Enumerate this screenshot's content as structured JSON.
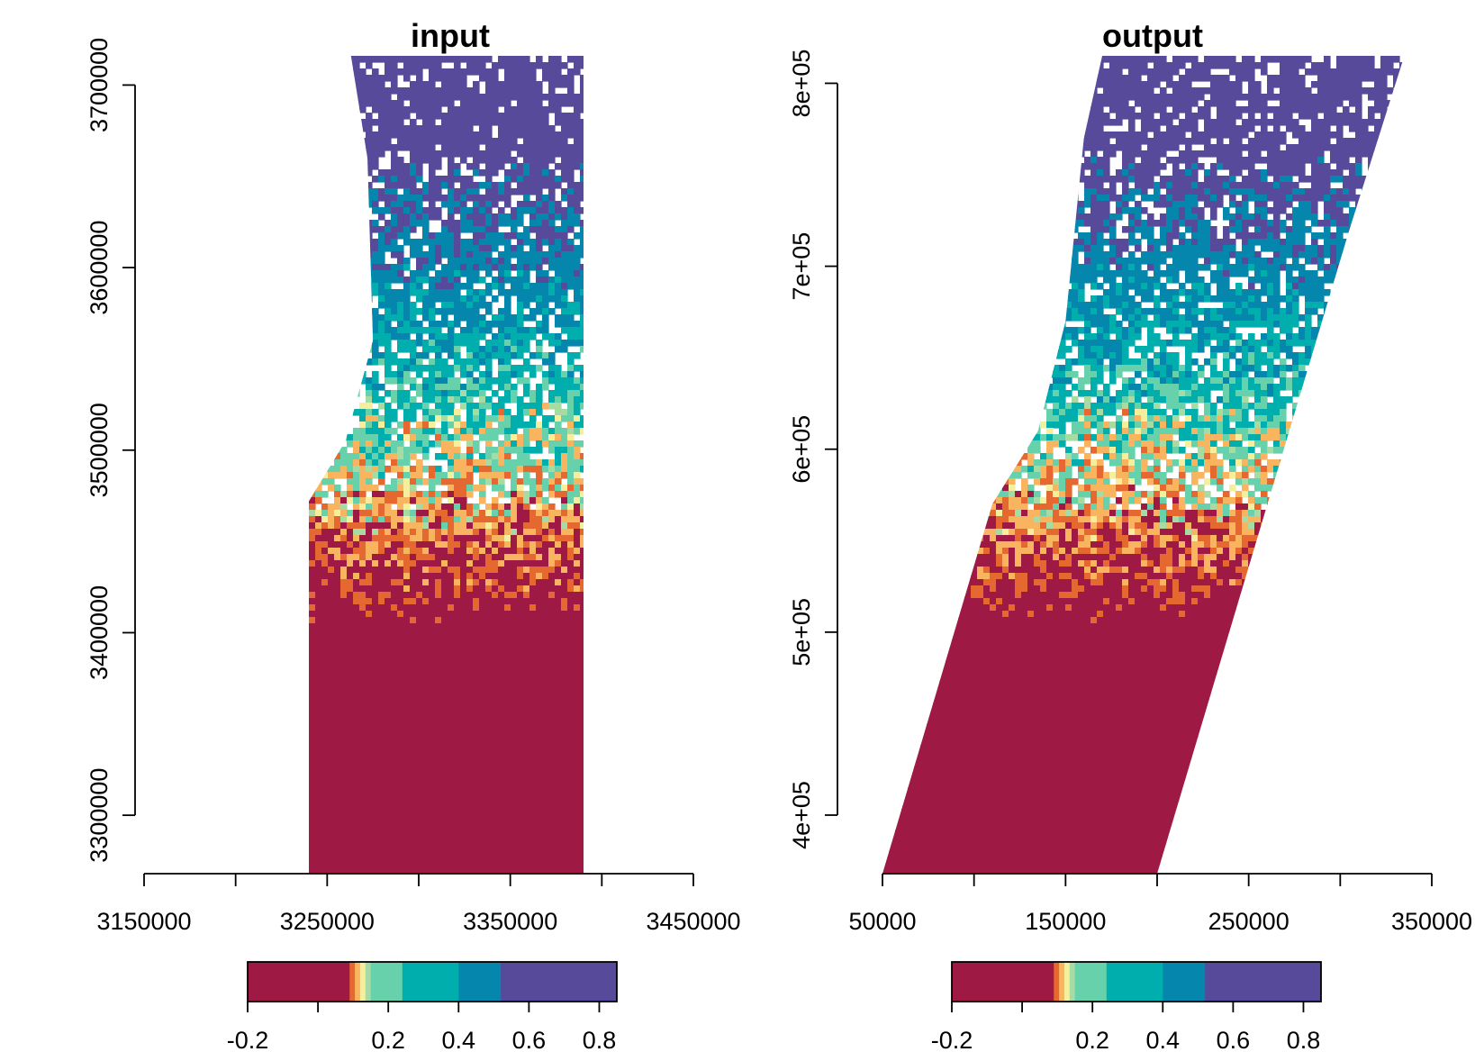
{
  "chart_data": [
    {
      "type": "heatmap",
      "title": "input",
      "xlabel": "",
      "ylabel": "",
      "x_ticks": [
        3150000,
        3200000,
        3250000,
        3300000,
        3350000,
        3400000,
        3450000
      ],
      "x_tick_labels": [
        "3150000",
        "",
        "3250000",
        "",
        "3350000",
        "",
        "3450000"
      ],
      "y_ticks": [
        3300000,
        3400000,
        3500000,
        3600000,
        3700000
      ],
      "y_tick_labels": [
        "3300000",
        "3400000",
        "3500000",
        "3600000",
        "3700000"
      ],
      "xlim": [
        3150000,
        3450000
      ],
      "ylim": [
        3268000,
        3716000
      ],
      "footprint": {
        "description_units": "map coordinates",
        "outline": [
          [
            3240000,
            3268000
          ],
          [
            3240000,
            3472000
          ],
          [
            3260000,
            3505000
          ],
          [
            3275000,
            3560000
          ],
          [
            3272000,
            3660000
          ],
          [
            3263000,
            3716000
          ],
          [
            3390000,
            3716000
          ],
          [
            3390000,
            3268000
          ]
        ]
      },
      "legend": {
        "placement": "bottom",
        "range": [
          -0.2,
          0.85
        ],
        "tick_values": [
          -0.2,
          0.2,
          0.4,
          0.6,
          0.8
        ],
        "tick_labels": [
          "-0.2",
          "0.2",
          "0.4",
          "0.6",
          "0.8"
        ],
        "extra_ticks": [
          0.0
        ],
        "color_breaks": [
          {
            "from": -0.2,
            "to": 0.09,
            "color": "#9e1a45"
          },
          {
            "from": 0.09,
            "to": 0.105,
            "color": "#e4682f"
          },
          {
            "from": 0.105,
            "to": 0.12,
            "color": "#f8b45f"
          },
          {
            "from": 0.12,
            "to": 0.135,
            "color": "#f5ee9c"
          },
          {
            "from": 0.135,
            "to": 0.15,
            "color": "#a7dba4"
          },
          {
            "from": 0.15,
            "to": 0.24,
            "color": "#66d1ab"
          },
          {
            "from": 0.24,
            "to": 0.4,
            "color": "#00aeae"
          },
          {
            "from": 0.4,
            "to": 0.52,
            "color": "#0586ad"
          },
          {
            "from": 0.52,
            "to": 0.87,
            "color": "#574a9b"
          }
        ]
      }
    },
    {
      "type": "heatmap",
      "title": "output",
      "xlabel": "",
      "ylabel": "",
      "x_ticks": [
        50000,
        100000,
        150000,
        200000,
        250000,
        300000,
        350000
      ],
      "x_tick_labels": [
        "50000",
        "",
        "150000",
        "",
        "250000",
        "",
        "350000"
      ],
      "y_ticks": [
        400000,
        500000,
        600000,
        700000,
        800000
      ],
      "y_tick_labels": [
        "4e+05",
        "5e+05",
        "6e+05",
        "7e+05",
        "8e+05"
      ],
      "xlim": [
        50000,
        350000
      ],
      "ylim": [
        368000,
        815000
      ],
      "footprint": {
        "description_units": "map coordinates",
        "outline": [
          [
            50000,
            368000
          ],
          [
            110000,
            570000
          ],
          [
            135000,
            610000
          ],
          [
            150000,
            670000
          ],
          [
            160000,
            770000
          ],
          [
            170000,
            815000
          ],
          [
            335000,
            815000
          ],
          [
            305000,
            720000
          ],
          [
            200000,
            368000
          ]
        ]
      },
      "legend": {
        "placement": "bottom",
        "range": [
          -0.2,
          0.85
        ],
        "tick_values": [
          -0.2,
          0.2,
          0.4,
          0.6,
          0.8
        ],
        "tick_labels": [
          "-0.2",
          "0.2",
          "0.4",
          "0.6",
          "0.8"
        ],
        "extra_ticks": [
          0.0
        ],
        "color_breaks": [
          {
            "from": -0.2,
            "to": 0.09,
            "color": "#9e1a45"
          },
          {
            "from": 0.09,
            "to": 0.105,
            "color": "#e4682f"
          },
          {
            "from": 0.105,
            "to": 0.12,
            "color": "#f8b45f"
          },
          {
            "from": 0.12,
            "to": 0.135,
            "color": "#f5ee9c"
          },
          {
            "from": 0.135,
            "to": 0.15,
            "color": "#a7dba4"
          },
          {
            "from": 0.15,
            "to": 0.24,
            "color": "#66d1ab"
          },
          {
            "from": 0.24,
            "to": 0.4,
            "color": "#00aeae"
          },
          {
            "from": 0.4,
            "to": 0.52,
            "color": "#0586ad"
          },
          {
            "from": 0.52,
            "to": 0.87,
            "color": "#574a9b"
          }
        ]
      }
    }
  ]
}
